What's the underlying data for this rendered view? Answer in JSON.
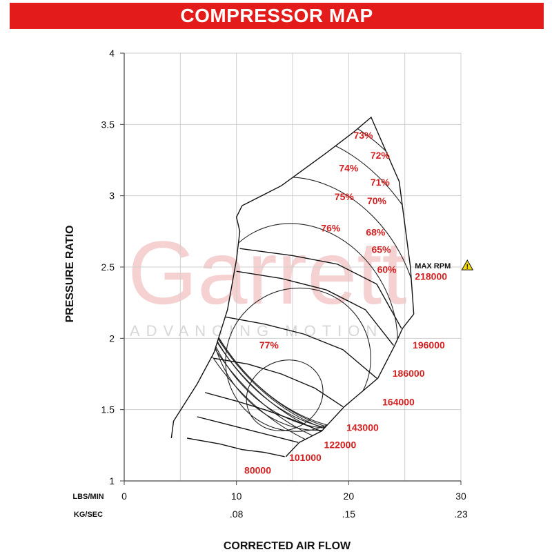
{
  "title": "COMPRESSOR MAP",
  "watermark": {
    "brand": "Garrett",
    "tagline": "ADVANCING MOTION"
  },
  "chart_data": {
    "type": "contour",
    "ylabel": "PRESSURE RATIO",
    "xlabel": "CORRECTED AIR FLOW",
    "xlim": [
      0,
      30
    ],
    "ylim": [
      1,
      4
    ],
    "grid": true,
    "x_ticks": [
      0,
      10,
      20,
      30
    ],
    "y_ticks": [
      1,
      1.5,
      2,
      2.5,
      3,
      3.5,
      4
    ],
    "y_tick_labels": [
      "1",
      "1.5",
      "2",
      "2.5",
      "3",
      "3.5",
      "4"
    ],
    "x_axes": [
      {
        "label": "LBS/MIN",
        "ticks": [
          "0",
          "10",
          "20",
          "30"
        ]
      },
      {
        "label": "KG/SEC",
        "ticks": [
          "",
          ".08",
          ".15",
          ".23"
        ]
      }
    ],
    "max_rpm": {
      "label": "MAX RPM",
      "speed": "218000"
    },
    "speed_lines": [
      {
        "label": "80000",
        "points": [
          [
            5.6,
            1.3
          ],
          [
            8.5,
            1.26
          ],
          [
            10.5,
            1.22
          ],
          [
            12.5,
            1.2
          ],
          [
            14.3,
            1.17
          ]
        ]
      },
      {
        "label": "101000",
        "points": [
          [
            6.5,
            1.45
          ],
          [
            9.0,
            1.4
          ],
          [
            11.5,
            1.35
          ],
          [
            13.5,
            1.31
          ],
          [
            15.5,
            1.27
          ]
        ]
      },
      {
        "label": "122000",
        "points": [
          [
            7.2,
            1.62
          ],
          [
            10.0,
            1.56
          ],
          [
            12.5,
            1.5
          ],
          [
            15.0,
            1.43
          ],
          [
            17.5,
            1.35
          ]
        ]
      },
      {
        "label": "143000",
        "points": [
          [
            8.0,
            1.86
          ],
          [
            11.0,
            1.82
          ],
          [
            14.0,
            1.75
          ],
          [
            17.0,
            1.65
          ],
          [
            19.5,
            1.52
          ]
        ]
      },
      {
        "label": "164000",
        "points": [
          [
            9.0,
            2.15
          ],
          [
            12.5,
            2.1
          ],
          [
            16.0,
            2.03
          ],
          [
            19.5,
            1.92
          ],
          [
            22.5,
            1.72
          ]
        ]
      },
      {
        "label": "186000",
        "points": [
          [
            10.0,
            2.47
          ],
          [
            14.0,
            2.42
          ],
          [
            18.0,
            2.34
          ],
          [
            21.5,
            2.2
          ],
          [
            24.0,
            1.95
          ]
        ]
      },
      {
        "label": "196000",
        "points": [
          [
            10.3,
            2.63
          ],
          [
            15.0,
            2.58
          ],
          [
            19.0,
            2.52
          ],
          [
            22.5,
            2.38
          ],
          [
            24.7,
            2.07
          ]
        ]
      },
      {
        "label": "218000",
        "points": [
          [
            10.5,
            2.93
          ],
          [
            14.0,
            3.07
          ],
          [
            18.0,
            3.3
          ],
          [
            20.5,
            3.45
          ],
          [
            22.0,
            3.55
          ],
          [
            24.5,
            3.1
          ],
          [
            25.5,
            2.5
          ],
          [
            25.8,
            2.17
          ]
        ]
      }
    ],
    "surge_line": [
      [
        4.2,
        1.3
      ],
      [
        4.4,
        1.42
      ],
      [
        6.5,
        1.68
      ],
      [
        8.0,
        1.9
      ],
      [
        9.2,
        2.2
      ],
      [
        10.0,
        2.55
      ],
      [
        10.3,
        2.75
      ],
      [
        10.0,
        2.85
      ],
      [
        10.5,
        2.93
      ]
    ],
    "choke_line": [
      [
        14.4,
        1.17
      ],
      [
        15.6,
        1.27
      ],
      [
        17.6,
        1.35
      ],
      [
        19.6,
        1.52
      ],
      [
        22.6,
        1.72
      ],
      [
        24.1,
        1.95
      ],
      [
        24.8,
        2.07
      ],
      [
        25.8,
        2.17
      ]
    ],
    "efficiency_islands": [
      {
        "label": "77%",
        "center": [
          14.3,
          1.6
        ],
        "rx": 3.5,
        "ry": 0.24
      },
      {
        "label": "76%",
        "center": [
          15.5,
          1.85
        ],
        "rx": 6.5,
        "ry": 0.5
      },
      {
        "label": "75%",
        "center": [
          16.0,
          2.08
        ],
        "rx": 8.0,
        "ry": 0.75
      },
      {
        "label": "74%",
        "center": [
          16.5,
          2.25
        ],
        "rx": 9.2,
        "ry": 0.92
      },
      {
        "label": "73%",
        "center": [
          17.0,
          2.4
        ],
        "rx": 10.2,
        "ry": 1.1
      },
      {
        "label": "72%",
        "center": [
          17.5,
          2.5
        ],
        "rx": 11.0,
        "ry": 1.2
      },
      {
        "label": "71%",
        "center": [
          18.0,
          2.55
        ],
        "rx": 11.8,
        "ry": 1.28
      },
      {
        "label": "70%",
        "center": [
          18.5,
          2.58
        ],
        "rx": 12.5,
        "ry": 1.34
      },
      {
        "label": "68%",
        "center": [
          19.0,
          2.6
        ],
        "rx": 13.3,
        "ry": 1.4
      },
      {
        "label": "65%",
        "center": [
          19.5,
          2.6
        ],
        "rx": 14.2,
        "ry": 1.46
      },
      {
        "label": "60%",
        "center": [
          20.0,
          2.6
        ],
        "rx": 15.2,
        "ry": 1.5
      }
    ],
    "efficiency_labels": [
      {
        "label": "73%",
        "x": 21.3,
        "y": 3.4
      },
      {
        "label": "72%",
        "x": 22.8,
        "y": 3.26
      },
      {
        "label": "74%",
        "x": 20.0,
        "y": 3.17
      },
      {
        "label": "71%",
        "x": 22.8,
        "y": 3.07
      },
      {
        "label": "75%",
        "x": 19.6,
        "y": 2.97
      },
      {
        "label": "70%",
        "x": 22.5,
        "y": 2.94
      },
      {
        "label": "76%",
        "x": 18.4,
        "y": 2.75
      },
      {
        "label": "68%",
        "x": 22.4,
        "y": 2.72
      },
      {
        "label": "65%",
        "x": 22.9,
        "y": 2.6
      },
      {
        "label": "60%",
        "x": 23.4,
        "y": 2.46
      },
      {
        "label": "77%",
        "x": 12.9,
        "y": 1.93
      }
    ],
    "speed_labels": [
      {
        "label": "80000",
        "x": 10.7,
        "y": 1.05
      },
      {
        "label": "101000",
        "x": 14.7,
        "y": 1.14
      },
      {
        "label": "122000",
        "x": 17.8,
        "y": 1.23
      },
      {
        "label": "143000",
        "x": 19.8,
        "y": 1.35
      },
      {
        "label": "164000",
        "x": 23.0,
        "y": 1.53
      },
      {
        "label": "186000",
        "x": 23.9,
        "y": 1.73
      },
      {
        "label": "196000",
        "x": 25.7,
        "y": 1.93
      },
      {
        "label": "218000",
        "x": 25.9,
        "y": 2.41
      }
    ],
    "series": []
  }
}
